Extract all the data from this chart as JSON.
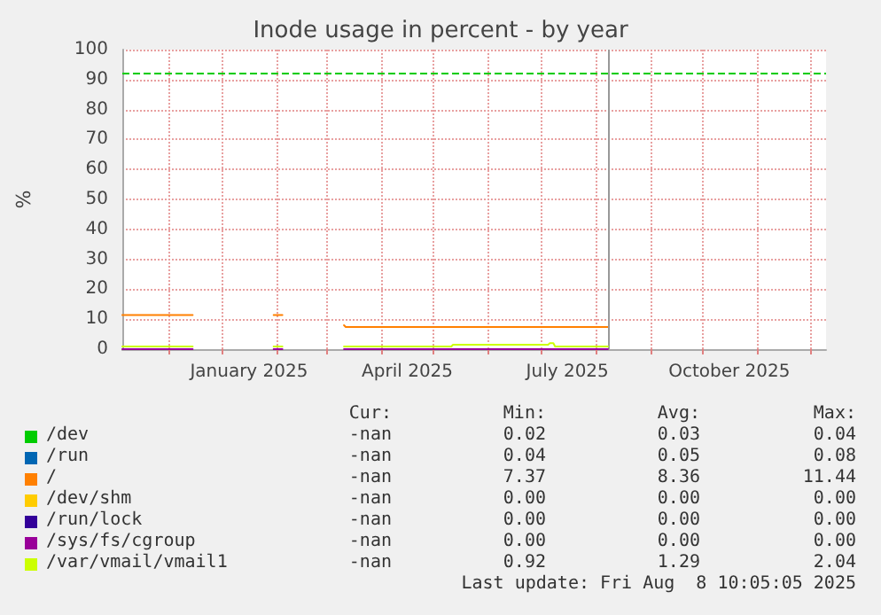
{
  "chart_data": {
    "type": "line",
    "title": "Inode usage in percent - by year",
    "ylabel": "%",
    "x": [
      "2024-11-05",
      "2024-12-15",
      "2024-12-16",
      "2025-01-30",
      "2025-02-04",
      "2025-02-05",
      "2025-03-11",
      "2025-03-12",
      "2025-05-11",
      "2025-05-12",
      "2025-07-05",
      "2025-07-06",
      "2025-07-08",
      "2025-07-09",
      "2025-08-08"
    ],
    "series": [
      {
        "name": "/dev",
        "color": "#00cc00",
        "values": [
          null,
          null,
          null,
          null,
          null,
          null,
          null,
          null,
          null,
          null,
          null,
          null,
          null,
          null,
          null
        ]
      },
      {
        "name": "/run",
        "color": "#0066b3",
        "values": [
          null,
          null,
          null,
          null,
          null,
          null,
          null,
          null,
          null,
          null,
          null,
          null,
          null,
          null,
          null
        ]
      },
      {
        "name": "/",
        "color": "#ff8000",
        "values": [
          11.4,
          11.4,
          null,
          11.4,
          11.4,
          null,
          8,
          7.4,
          7.4,
          7.4,
          7.4,
          7.4,
          7.4,
          7.4,
          7.4
        ]
      },
      {
        "name": "/dev/shm",
        "color": "#ffcc00",
        "values": [
          null,
          null,
          null,
          null,
          null,
          null,
          null,
          null,
          null,
          null,
          null,
          null,
          null,
          null,
          null
        ]
      },
      {
        "name": "/run/lock",
        "color": "#330099",
        "values": [
          null,
          null,
          null,
          null,
          null,
          null,
          null,
          null,
          null,
          null,
          null,
          null,
          null,
          null,
          null
        ]
      },
      {
        "name": "/sys/fs/cgroup",
        "color": "#990099",
        "values": [
          0,
          0,
          null,
          0,
          0,
          null,
          0,
          0,
          0,
          0,
          0,
          0,
          0,
          0,
          0
        ]
      },
      {
        "name": "/var/vmail/vmail1",
        "color": "#ccff00",
        "values": [
          0.9,
          0.9,
          null,
          0.9,
          0.9,
          null,
          0.9,
          0.9,
          0.9,
          1.5,
          1.5,
          2,
          2,
          0.9,
          0.9
        ]
      }
    ],
    "xlim": [
      "2024-11-05",
      "2025-12-10"
    ],
    "xticks": [
      {
        "value": "2024-12-01",
        "label": null
      },
      {
        "value": "2025-01-01",
        "label": null
      },
      {
        "value": "2025-01-16",
        "label": "January 2025"
      },
      {
        "value": "2025-02-01",
        "label": null
      },
      {
        "value": "2025-03-01",
        "label": null
      },
      {
        "value": "2025-04-01",
        "label": null
      },
      {
        "value": "2025-04-16",
        "label": "April 2025"
      },
      {
        "value": "2025-05-01",
        "label": null
      },
      {
        "value": "2025-06-01",
        "label": null
      },
      {
        "value": "2025-07-01",
        "label": null
      },
      {
        "value": "2025-07-16",
        "label": "July 2025"
      },
      {
        "value": "2025-08-01",
        "label": null
      },
      {
        "value": "2025-09-01",
        "label": null
      },
      {
        "value": "2025-10-01",
        "label": null
      },
      {
        "value": "2025-10-16",
        "label": "October 2025"
      },
      {
        "value": "2025-11-01",
        "label": null
      },
      {
        "value": "2025-12-01",
        "label": null
      }
    ],
    "ylim": [
      0,
      100
    ],
    "yticks": [
      0,
      10,
      20,
      30,
      40,
      50,
      60,
      70,
      80,
      90,
      100
    ],
    "grid": true,
    "legend": "bottom",
    "marker": "none",
    "line_style": "solid",
    "ref_lines": [
      {
        "axis": "y",
        "value": 92,
        "color": "#00cc00",
        "line_style": "dashed"
      },
      {
        "axis": "x",
        "value": "2025-08-08",
        "color": "#999999",
        "line_style": "solid"
      }
    ],
    "annotations": [
      "Cur:",
      "Min:",
      "Avg:",
      "Max:",
      "-nan",
      "0.02",
      "0.03",
      "0.04",
      "-nan",
      "0.04",
      "0.05",
      "0.08",
      "-nan",
      "7.37",
      "8.36",
      "11.44",
      "-nan",
      "0.00",
      "0.00",
      "0.00",
      "-nan",
      "0.00",
      "0.00",
      "0.00",
      "-nan",
      "0.00",
      "0.00",
      "0.00",
      "-nan",
      "0.92",
      "1.29",
      "2.04",
      "Last update: Fri Aug  8 10:05:05 2025"
    ]
  }
}
